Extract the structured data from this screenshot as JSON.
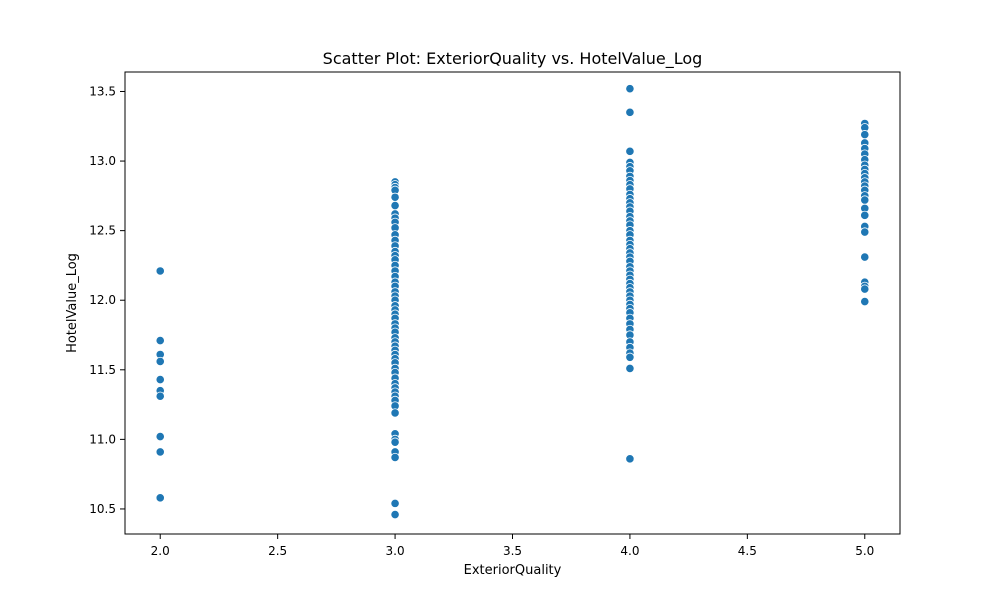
{
  "chart_data": {
    "type": "scatter",
    "title": "Scatter Plot: ExteriorQuality vs. HotelValue_Log",
    "xlabel": "ExteriorQuality",
    "ylabel": "HotelValue_Log",
    "xlim": [
      1.85,
      5.15
    ],
    "ylim": [
      10.32,
      13.64
    ],
    "xticks": [
      "2.0",
      "2.5",
      "3.0",
      "3.5",
      "4.0",
      "4.5",
      "5.0"
    ],
    "yticks": [
      "10.5",
      "11.0",
      "11.5",
      "12.0",
      "12.5",
      "13.0",
      "13.5"
    ],
    "grid": false,
    "marker_color": "#1f77b4",
    "marker_edge_color": "#ffffff",
    "series": [
      {
        "points": [
          [
            2,
            12.21
          ],
          [
            2,
            11.71
          ],
          [
            2,
            11.61
          ],
          [
            2,
            11.56
          ],
          [
            2,
            11.43
          ],
          [
            2,
            11.35
          ],
          [
            2,
            11.31
          ],
          [
            2,
            11.02
          ],
          [
            2,
            10.91
          ],
          [
            2,
            10.58
          ],
          [
            3,
            12.85
          ],
          [
            3,
            12.83
          ],
          [
            3,
            12.81
          ],
          [
            3,
            12.79
          ],
          [
            3,
            12.74
          ],
          [
            3,
            12.68
          ],
          [
            3,
            12.62
          ],
          [
            3,
            12.59
          ],
          [
            3,
            12.56
          ],
          [
            3,
            12.52
          ],
          [
            3,
            12.47
          ],
          [
            3,
            12.43
          ],
          [
            3,
            12.39
          ],
          [
            3,
            12.35
          ],
          [
            3,
            12.32
          ],
          [
            3,
            12.29
          ],
          [
            3,
            12.25
          ],
          [
            3,
            12.21
          ],
          [
            3,
            12.17
          ],
          [
            3,
            12.13
          ],
          [
            3,
            12.1
          ],
          [
            3,
            12.06
          ],
          [
            3,
            12.03
          ],
          [
            3,
            12.0
          ],
          [
            3,
            11.96
          ],
          [
            3,
            11.93
          ],
          [
            3,
            11.9
          ],
          [
            3,
            11.87
          ],
          [
            3,
            11.83
          ],
          [
            3,
            11.8
          ],
          [
            3,
            11.77
          ],
          [
            3,
            11.73
          ],
          [
            3,
            11.7
          ],
          [
            3,
            11.67
          ],
          [
            3,
            11.64
          ],
          [
            3,
            11.61
          ],
          [
            3,
            11.58
          ],
          [
            3,
            11.55
          ],
          [
            3,
            11.51
          ],
          [
            3,
            11.48
          ],
          [
            3,
            11.44
          ],
          [
            3,
            11.4
          ],
          [
            3,
            11.37
          ],
          [
            3,
            11.34
          ],
          [
            3,
            11.31
          ],
          [
            3,
            11.28
          ],
          [
            3,
            11.24
          ],
          [
            3,
            11.19
          ],
          [
            3,
            11.04
          ],
          [
            3,
            11.0
          ],
          [
            3,
            10.98
          ],
          [
            3,
            10.91
          ],
          [
            3,
            10.87
          ],
          [
            3,
            10.54
          ],
          [
            3,
            10.46
          ],
          [
            4,
            13.52
          ],
          [
            4,
            13.35
          ],
          [
            4,
            13.07
          ],
          [
            4,
            12.99
          ],
          [
            4,
            12.96
          ],
          [
            4,
            12.93
          ],
          [
            4,
            12.89
          ],
          [
            4,
            12.86
          ],
          [
            4,
            12.83
          ],
          [
            4,
            12.8
          ],
          [
            4,
            12.76
          ],
          [
            4,
            12.73
          ],
          [
            4,
            12.7
          ],
          [
            4,
            12.67
          ],
          [
            4,
            12.64
          ],
          [
            4,
            12.6
          ],
          [
            4,
            12.57
          ],
          [
            4,
            12.54
          ],
          [
            4,
            12.5
          ],
          [
            4,
            12.47
          ],
          [
            4,
            12.43
          ],
          [
            4,
            12.4
          ],
          [
            4,
            12.37
          ],
          [
            4,
            12.34
          ],
          [
            4,
            12.31
          ],
          [
            4,
            12.28
          ],
          [
            4,
            12.24
          ],
          [
            4,
            12.21
          ],
          [
            4,
            12.18
          ],
          [
            4,
            12.15
          ],
          [
            4,
            12.12
          ],
          [
            4,
            12.09
          ],
          [
            4,
            12.06
          ],
          [
            4,
            12.03
          ],
          [
            4,
            12.0
          ],
          [
            4,
            11.97
          ],
          [
            4,
            11.94
          ],
          [
            4,
            11.91
          ],
          [
            4,
            11.87
          ],
          [
            4,
            11.83
          ],
          [
            4,
            11.79
          ],
          [
            4,
            11.75
          ],
          [
            4,
            11.7
          ],
          [
            4,
            11.66
          ],
          [
            4,
            11.62
          ],
          [
            4,
            11.59
          ],
          [
            4,
            11.51
          ],
          [
            4,
            10.86
          ],
          [
            5,
            13.27
          ],
          [
            5,
            13.24
          ],
          [
            5,
            13.19
          ],
          [
            5,
            13.13
          ],
          [
            5,
            13.09
          ],
          [
            5,
            13.05
          ],
          [
            5,
            13.01
          ],
          [
            5,
            12.97
          ],
          [
            5,
            12.94
          ],
          [
            5,
            12.91
          ],
          [
            5,
            12.88
          ],
          [
            5,
            12.85
          ],
          [
            5,
            12.82
          ],
          [
            5,
            12.79
          ],
          [
            5,
            12.75
          ],
          [
            5,
            12.72
          ],
          [
            5,
            12.66
          ],
          [
            5,
            12.61
          ],
          [
            5,
            12.53
          ],
          [
            5,
            12.49
          ],
          [
            5,
            12.31
          ],
          [
            5,
            12.13
          ],
          [
            5,
            12.1
          ],
          [
            5,
            12.08
          ],
          [
            5,
            11.99
          ]
        ]
      }
    ]
  }
}
